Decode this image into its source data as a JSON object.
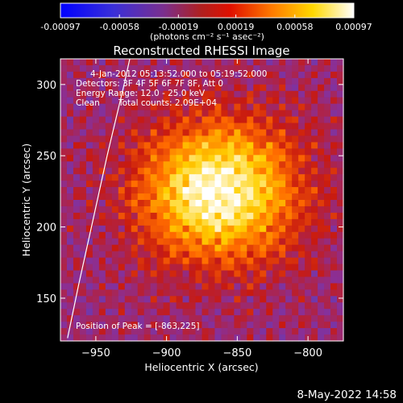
{
  "chart_data": {
    "type": "heatmap",
    "title": "Reconstructed RHESSI Image",
    "xlabel": "Heliocentric X (arcsec)",
    "ylabel": "Heliocentric Y (arcsec)",
    "xlim": [
      -975,
      -775
    ],
    "ylim": [
      120,
      318
    ],
    "x_ticks": [
      -950,
      -900,
      -850,
      -800
    ],
    "y_ticks": [
      150,
      200,
      250,
      300
    ],
    "colorbar": {
      "range": [
        -0.00097,
        0.00097
      ],
      "tick_values": [
        -0.00097,
        -0.00058,
        -0.00019,
        0.00019,
        0.00058,
        0.00097
      ],
      "tick_labels": [
        "-0.00097",
        "-0.00058",
        "-0.00019",
        "0.00019",
        "0.00058",
        "0.00097"
      ],
      "units_label": "(photons cm⁻² s⁻¹ asec⁻²)",
      "colormap_stops": [
        "#0000ff",
        "#5b3fbf",
        "#8a2f96",
        "#c81a10",
        "#ff6a00",
        "#ffd000",
        "#ffffff"
      ]
    },
    "peak": {
      "x": -863,
      "y": 225
    },
    "annotations": {
      "time_range": "4-Jan-2012 05:13:52.000 to 05:19:52.000",
      "detectors": "Detectors: 3F 4F 5F 6F 7F 8F, Att 0",
      "energy_range": "Energy Range: 12.0 - 25.0 keV",
      "method": "Clean",
      "counts": "Total counts: 2.09E+04",
      "peak_text": "Position of Peak = [-863,225]"
    },
    "limb_visible": true,
    "footer_date": "8-May-2022 14:58"
  }
}
